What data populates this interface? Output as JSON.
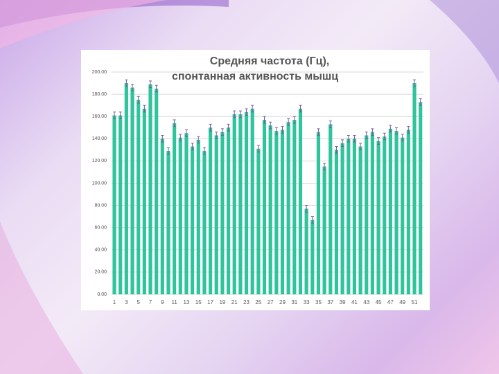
{
  "chart_data": {
    "type": "bar",
    "title": [
      "Средняя частота (Гц),",
      "спонтанная активность мышц"
    ],
    "categories": [
      "1",
      null,
      "3",
      null,
      "5",
      null,
      "7",
      null,
      "9",
      null,
      "11",
      null,
      "13",
      null,
      "15",
      null,
      "17",
      null,
      "19",
      null,
      "21",
      null,
      "23",
      null,
      "25",
      null,
      "27",
      null,
      "29",
      null,
      "31",
      null,
      "33",
      null,
      "35",
      null,
      "37",
      null,
      "39",
      null,
      "41",
      null,
      "43",
      null,
      "45",
      null,
      "47",
      null,
      "49",
      null,
      "51",
      null
    ],
    "values": [
      161,
      161,
      190,
      186,
      175,
      167,
      189,
      185,
      140,
      129,
      154,
      141,
      145,
      133,
      139,
      129,
      150,
      143,
      146,
      150,
      162,
      162,
      164,
      167,
      131,
      157,
      152,
      147,
      148,
      155,
      157,
      167,
      77,
      67,
      146,
      115,
      153,
      130,
      136,
      140,
      140,
      133,
      143,
      146,
      138,
      142,
      149,
      147,
      141,
      148,
      190,
      173
    ],
    "errors": [
      3,
      3,
      3,
      3,
      3,
      3,
      3,
      3,
      3,
      3,
      3,
      3,
      3,
      3,
      3,
      3,
      3,
      3,
      3,
      3,
      3,
      3,
      3,
      3,
      3,
      3,
      3,
      3,
      3,
      3,
      3,
      3,
      3,
      3,
      3,
      3,
      3,
      3,
      3,
      3,
      3,
      3,
      3,
      3,
      3,
      3,
      3,
      3,
      3,
      3,
      3,
      3
    ],
    "color": "#2fc49c",
    "error_color": "#7a5a9c",
    "ylim": [
      0,
      200
    ],
    "yticks": [
      {
        "value": 0,
        "label": "0.00"
      },
      {
        "value": 20,
        "label": "20.00"
      },
      {
        "value": 40,
        "label": "40.00"
      },
      {
        "value": 60,
        "label": "60.00"
      },
      {
        "value": 80,
        "label": "80.00"
      },
      {
        "value": 100,
        "label": "100.00"
      },
      {
        "value": 120,
        "label": "120.00"
      },
      {
        "value": 140,
        "label": "140.00"
      },
      {
        "value": 160,
        "label": "160.00"
      },
      {
        "value": 180,
        "label": "180.00"
      },
      {
        "value": 200,
        "label": "200.00"
      }
    ],
    "grid": true
  }
}
